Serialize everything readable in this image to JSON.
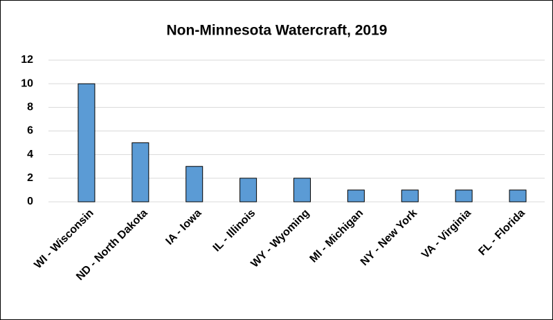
{
  "chart_data": {
    "type": "bar",
    "title": "Non-Minnesota  Watercraft, 2019",
    "categories": [
      "WI - Wisconsin",
      "ND - North Dakota",
      "IA - Iowa",
      "IL - Illinois",
      "WY - Wyoming",
      "MI - Michigan",
      "NY - New York",
      "VA - Virginia",
      "FL - Florida"
    ],
    "values": [
      10,
      5,
      3,
      2,
      2,
      1,
      1,
      1,
      1
    ],
    "color": "#5b9bd5",
    "ylim": [
      0,
      12
    ],
    "yticks": [
      0,
      2,
      4,
      6,
      8,
      10,
      12
    ],
    "grid": true
  }
}
